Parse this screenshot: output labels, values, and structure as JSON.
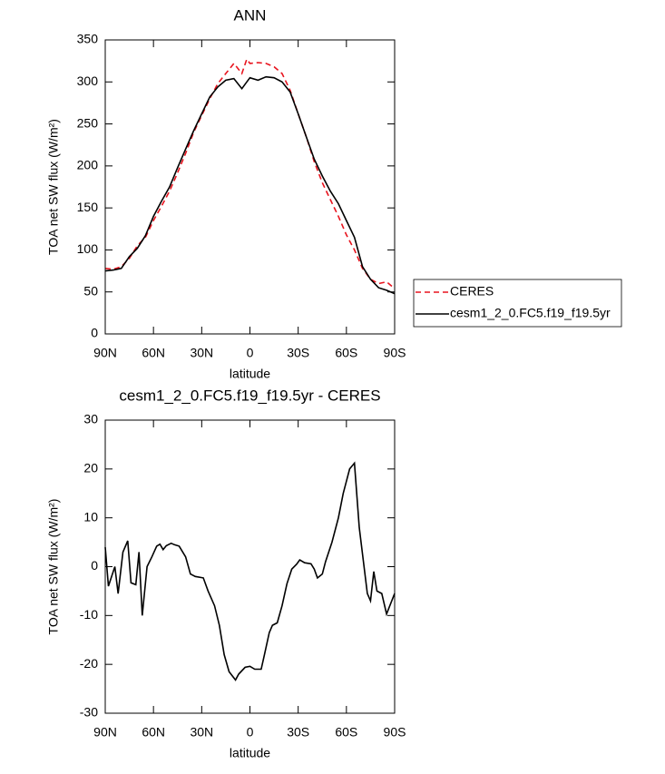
{
  "chart_data": [
    {
      "type": "line",
      "title": "ANN",
      "x_label": "latitude",
      "y_label": "TOA net SW flux (W/m²)",
      "x": [
        90,
        85,
        80,
        75,
        70,
        65,
        60,
        55,
        50,
        45,
        40,
        35,
        30,
        25,
        20,
        15,
        10,
        5,
        2,
        0,
        -5,
        -10,
        -15,
        -20,
        -25,
        -30,
        -35,
        -40,
        -45,
        -50,
        -55,
        -60,
        -65,
        -70,
        -75,
        -80,
        -85,
        -90
      ],
      "series": [
        {
          "name": "CERES",
          "color": "#e8141e",
          "line_style": "dashed",
          "values": [
            78,
            77,
            80,
            90,
            105,
            115,
            135,
            152,
            170,
            192,
            215,
            240,
            260,
            280,
            298,
            310,
            322,
            310,
            327,
            322,
            323,
            322,
            318,
            310,
            290,
            262,
            235,
            205,
            180,
            160,
            140,
            118,
            100,
            78,
            65,
            60,
            62,
            54
          ]
        },
        {
          "name": "cesm1_2_0.FC5.f19_f19.5yr",
          "color": "#000000",
          "line_style": "solid",
          "values": [
            75,
            76,
            78,
            92,
            102,
            117,
            140,
            158,
            175,
            198,
            220,
            242,
            262,
            282,
            294,
            302,
            304,
            292,
            300,
            305,
            302,
            306,
            305,
            300,
            288,
            262,
            235,
            208,
            188,
            170,
            155,
            135,
            115,
            80,
            65,
            55,
            52,
            48
          ]
        }
      ],
      "xlim": [
        90,
        -90
      ],
      "xticks": [
        {
          "value": 90,
          "label": "90N"
        },
        {
          "value": 60,
          "label": "60N"
        },
        {
          "value": 30,
          "label": "30N"
        },
        0,
        {
          "value": -30,
          "label": "30S"
        },
        {
          "value": -60,
          "label": "60S"
        },
        {
          "value": -90,
          "label": "90S"
        }
      ],
      "ylim": [
        0,
        350
      ],
      "yticks": [
        0,
        50,
        100,
        150,
        200,
        250,
        300,
        350
      ],
      "legend": "right"
    },
    {
      "type": "line",
      "title": "cesm1_2_0.FC5.f19_f19.5yr - CERES",
      "x_label": "latitude",
      "y_label": "TOA net SW flux (W/m²)",
      "x": [
        90,
        88,
        84,
        82,
        79,
        76,
        74,
        71,
        69,
        67,
        64,
        61,
        58,
        56,
        54,
        52,
        49,
        47,
        44,
        40,
        37,
        34,
        29,
        26,
        22,
        19,
        16,
        13,
        9,
        7,
        3,
        0,
        -3,
        -7,
        -9,
        -12,
        -14,
        -17,
        -20,
        -23,
        -26,
        -29,
        -31,
        -34,
        -38,
        -40,
        -42,
        -45,
        -47,
        -51,
        -55,
        -58,
        -62,
        -65,
        -68,
        -73,
        -75,
        -77,
        -79,
        -82,
        -85,
        -90
      ],
      "series": [
        {
          "color": "#000000",
          "line_style": "solid",
          "values": [
            4,
            -4,
            0,
            -5.5,
            3,
            5.3,
            -3.3,
            -3.7,
            3,
            -10,
            0,
            2,
            4.2,
            4.6,
            3.5,
            4.3,
            4.8,
            4.5,
            4.2,
            2,
            -1.5,
            -2,
            -2.3,
            -5,
            -8,
            -12,
            -18,
            -21.5,
            -23.2,
            -22,
            -20.6,
            -20.4,
            -21,
            -21,
            -18,
            -13.5,
            -12,
            -11.5,
            -8,
            -3.5,
            -0.5,
            0.5,
            1.4,
            0.8,
            0.6,
            -0.5,
            -2.3,
            -1.5,
            1,
            5,
            10,
            15,
            20,
            21.2,
            8,
            -5.5,
            -7,
            -1,
            -5,
            -5.5,
            -9.7,
            -5.5
          ]
        }
      ],
      "xlim": [
        90,
        -90
      ],
      "xticks": [
        {
          "value": 90,
          "label": "90N"
        },
        {
          "value": 60,
          "label": "60N"
        },
        {
          "value": 30,
          "label": "30N"
        },
        0,
        {
          "value": -30,
          "label": "30S"
        },
        {
          "value": -60,
          "label": "60S"
        },
        {
          "value": -90,
          "label": "90S"
        }
      ],
      "ylim": [
        -30,
        30
      ],
      "yticks": [
        -30,
        -20,
        -10,
        0,
        10,
        20,
        30
      ]
    }
  ]
}
